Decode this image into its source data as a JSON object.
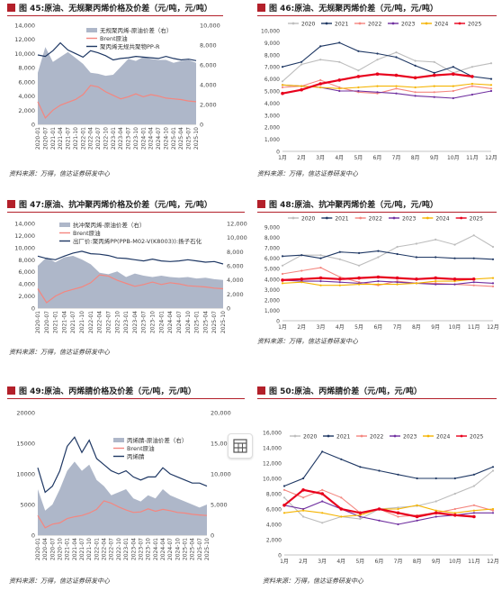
{
  "figures": [
    {
      "label": "图 45:",
      "title": "原油、无规聚丙烯价格及价差（元/吨，元/吨）",
      "source": "资料来源：万得，信达证券研发中心"
    },
    {
      "label": "图 46:",
      "title": "原油、无规聚丙烯价差（元/吨，元/吨）",
      "source": "资料来源：万得，信达证券研发中心"
    },
    {
      "label": "图 47:",
      "title": "原油、抗冲聚丙烯价格及价差（元/吨，元/吨）",
      "source": "资料来源：万得，信达证券研发中心"
    },
    {
      "label": "图 48:",
      "title": "原油、抗冲聚丙烯价差（元/吨，元/吨）",
      "source": "资料来源：万得，信达证券研发中心"
    },
    {
      "label": "图 49:",
      "title": "原油、丙烯腈价格及价差（元/吨，元/吨）",
      "source": "资料来源：万得，信达证券研发中心"
    },
    {
      "label": "图 50:",
      "title": "原油、丙烯腈价差（元/吨，元/吨）",
      "source": "资料来源：万得，信达证券研发中心"
    }
  ],
  "colors": {
    "accent": "#b3202a",
    "spread_area": "#aeb7c9",
    "brent": "#f4867f",
    "product": "#1f3864"
  },
  "chart_data": [
    {
      "type": "area",
      "xlabels": [
        "2020-01",
        "2020-07",
        "2021-01",
        "2021-04",
        "2021-07",
        "2021-10",
        "2022-01",
        "2022-04",
        "2022-07",
        "2022-10",
        "2023-01",
        "2023-04",
        "2023-07",
        "2023-10",
        "2024-01",
        "2024-04",
        "2024-07",
        "2024-10",
        "2025-01",
        "2025-04",
        "2025-07",
        "2025-10"
      ],
      "yticks_left": [
        "0",
        "2,000",
        "4,000",
        "6,000",
        "8,000",
        "10,000",
        "12,000",
        "14,000"
      ],
      "yticks_right": [
        "0",
        "2,000",
        "4,000",
        "6,000",
        "8,000",
        "10,000"
      ],
      "ylim_left": [
        0,
        14000
      ],
      "ylim_right": [
        0,
        10000
      ],
      "series": [
        {
          "name": "无规聚丙烯-原油价差（右）",
          "axis": "right",
          "kind": "area",
          "values": [
            5200,
            7800,
            6300,
            6800,
            7300,
            6700,
            6100,
            5200,
            5100,
            4900,
            5000,
            5800,
            6600,
            6400,
            6800,
            6600,
            6500,
            6500,
            6200,
            6400,
            6500,
            6200
          ]
        },
        {
          "name": "Brent原油",
          "axis": "left",
          "kind": "line",
          "values": [
            3200,
            900,
            2000,
            2700,
            3100,
            3500,
            4200,
            5500,
            5300,
            4600,
            4100,
            3600,
            3900,
            4300,
            3900,
            4200,
            4000,
            3700,
            3600,
            3500,
            3300,
            3200
          ]
        },
        {
          "name": "聚丙烯无规共聚物PP-R",
          "axis": "left",
          "kind": "line",
          "values": [
            9800,
            9600,
            10400,
            11500,
            10500,
            10000,
            9500,
            10400,
            10100,
            9700,
            9100,
            9300,
            9400,
            9600,
            9500,
            9400,
            9300,
            9600,
            9300,
            9100,
            9200,
            9000
          ]
        }
      ]
    },
    {
      "type": "line",
      "categories": [
        "1月",
        "2月",
        "3月",
        "4月",
        "5月",
        "6月",
        "7月",
        "8月",
        "9月",
        "10月",
        "11月",
        "12月"
      ],
      "yticks": [
        "0",
        "1,000",
        "2,000",
        "3,000",
        "4,000",
        "5,000",
        "6,000",
        "7,000",
        "8,000",
        "9,000",
        "10,000"
      ],
      "ylim": [
        0,
        10000
      ],
      "series": [
        {
          "name": "2020",
          "color": "#bdbdbd",
          "values": [
            5800,
            7200,
            7600,
            7400,
            6700,
            7600,
            8200,
            7500,
            7400,
            6500,
            7000,
            7300
          ]
        },
        {
          "name": "2021",
          "color": "#1f3864",
          "values": [
            7000,
            7400,
            8700,
            9000,
            8300,
            8100,
            7800,
            7100,
            6500,
            7000,
            6200,
            6000
          ]
        },
        {
          "name": "2022",
          "color": "#f4867f",
          "values": [
            5300,
            5400,
            5900,
            5300,
            4900,
            4800,
            5200,
            4900,
            4900,
            5000,
            5400,
            5200
          ]
        },
        {
          "name": "2023",
          "color": "#7030a0",
          "values": [
            5500,
            5400,
            5300,
            5000,
            5000,
            4900,
            4800,
            4600,
            4500,
            4400,
            4700,
            5000
          ]
        },
        {
          "name": "2024",
          "color": "#f5b400",
          "values": [
            5500,
            5400,
            5300,
            5200,
            5300,
            5400,
            5400,
            5300,
            5400,
            5400,
            5600,
            5500
          ]
        },
        {
          "name": "2025",
          "color": "#e8001c",
          "values": [
            4800,
            5100,
            5600,
            5900,
            6200,
            6400,
            6300,
            6100,
            6300,
            6400,
            6200,
            null
          ]
        }
      ]
    },
    {
      "type": "area",
      "xlabels": [
        "2020-01",
        "2020-07",
        "2021-01",
        "2021-04",
        "2021-07",
        "2021-10",
        "2022-01",
        "2022-04",
        "2022-07",
        "2022-10",
        "2023-01",
        "2023-04",
        "2023-07",
        "2023-10",
        "2024-01",
        "2024-04",
        "2024-07",
        "2024-10",
        "2025-01",
        "2025-04",
        "2025-07",
        "2025-10"
      ],
      "yticks_left": [
        "0",
        "2,000",
        "4,000",
        "6,000",
        "8,000",
        "10,000",
        "12,000",
        "14,000"
      ],
      "yticks_right": [
        "0",
        "2,000",
        "4,000",
        "6,000",
        "8,000",
        "10,000",
        "12,000"
      ],
      "ylim_left": [
        0,
        14000
      ],
      "ylim_right": [
        0,
        12000
      ],
      "series": [
        {
          "name": "抗冲聚丙烯-原油价差（右）",
          "axis": "right",
          "kind": "area",
          "values": [
            6000,
            7200,
            6500,
            7200,
            7400,
            6900,
            6200,
            5000,
            4800,
            5200,
            4400,
            4900,
            4600,
            4400,
            4600,
            4400,
            4300,
            4400,
            4200,
            4300,
            4100,
            4000
          ]
        },
        {
          "name": "Brent原油",
          "axis": "left",
          "kind": "line",
          "values": [
            3200,
            900,
            2000,
            2700,
            3100,
            3500,
            4200,
            5500,
            5300,
            4600,
            4100,
            3600,
            3900,
            4300,
            3900,
            4200,
            4000,
            3700,
            3600,
            3500,
            3300,
            3200
          ]
        },
        {
          "name": "出厂价:聚丙烯PP(PPB-M02-V(K8003)):扬子石化",
          "axis": "left",
          "kind": "line",
          "values": [
            8600,
            8200,
            8000,
            8600,
            9100,
            9400,
            9000,
            8900,
            8700,
            8300,
            8200,
            8000,
            7800,
            8100,
            7800,
            7700,
            7800,
            8000,
            7800,
            7600,
            7700,
            7300
          ]
        }
      ]
    },
    {
      "type": "line",
      "categories": [
        "1月",
        "2月",
        "3月",
        "4月",
        "5月",
        "6月",
        "7月",
        "8月",
        "9月",
        "10月",
        "11月",
        "12月"
      ],
      "yticks": [
        "0",
        "1,000",
        "2,000",
        "3,000",
        "4,000",
        "5,000",
        "6,000",
        "7,000",
        "8,000",
        "9,000"
      ],
      "ylim": [
        0,
        9000
      ],
      "series": [
        {
          "name": "2020",
          "color": "#bdbdbd",
          "values": [
            5300,
            6300,
            6300,
            5900,
            5300,
            6100,
            7100,
            7400,
            7800,
            7300,
            8200,
            7100
          ]
        },
        {
          "name": "2021",
          "color": "#1f3864",
          "values": [
            6200,
            6300,
            6000,
            6600,
            6500,
            6700,
            6400,
            6100,
            6100,
            6000,
            6000,
            5900
          ]
        },
        {
          "name": "2022",
          "color": "#f4867f",
          "values": [
            4500,
            4800,
            5100,
            4200,
            3700,
            3400,
            3800,
            3600,
            3600,
            3500,
            3400,
            3300
          ]
        },
        {
          "name": "2023",
          "color": "#7030a0",
          "values": [
            3900,
            3800,
            3800,
            3700,
            3600,
            3800,
            3700,
            3600,
            3500,
            3500,
            3700,
            3600
          ]
        },
        {
          "name": "2024",
          "color": "#f5b400",
          "values": [
            3600,
            3700,
            3400,
            3400,
            3500,
            3500,
            3500,
            3600,
            3800,
            3800,
            4000,
            4100
          ]
        },
        {
          "name": "2025",
          "color": "#e8001c",
          "values": [
            3900,
            4000,
            4100,
            4000,
            4100,
            4200,
            4100,
            4000,
            4100,
            4000,
            4000,
            null
          ]
        }
      ]
    },
    {
      "type": "area",
      "xlabels": [
        "2020-01",
        "2020-04",
        "2020-07",
        "2020-10",
        "2021-01",
        "2021-04",
        "2021-07",
        "2021-10",
        "2022-01",
        "2022-04",
        "2022-07",
        "2022-10",
        "2023-01",
        "2023-04",
        "2023-07",
        "2023-10",
        "2024-01",
        "2024-04",
        "2024-07",
        "2024-10",
        "2025-01",
        "2025-04",
        "2025-07",
        "2025-10"
      ],
      "yticks_left": [
        "0",
        "5000",
        "10000",
        "15000",
        "20000"
      ],
      "yticks_right": [
        "0",
        "5,000",
        "10,000",
        "15,000",
        "20,000"
      ],
      "ylim_left": [
        0,
        20000
      ],
      "ylim_right": [
        0,
        20000
      ],
      "series": [
        {
          "name": "丙烯腈-原油价差（右）",
          "axis": "right",
          "kind": "area",
          "values": [
            7500,
            4000,
            5000,
            7500,
            10500,
            12000,
            10500,
            11500,
            9000,
            8000,
            6500,
            7000,
            7500,
            6000,
            5500,
            6500,
            6000,
            7500,
            6500,
            6000,
            5500,
            5000,
            4500,
            5000
          ]
        },
        {
          "name": "Brent原油",
          "axis": "left",
          "kind": "line",
          "values": [
            3200,
            1200,
            1800,
            2000,
            2700,
            3000,
            3200,
            3600,
            4200,
            5600,
            5200,
            4600,
            4100,
            3700,
            3800,
            4300,
            3900,
            4200,
            4000,
            3700,
            3600,
            3400,
            3300,
            3200
          ]
        },
        {
          "name": "丙烯腈",
          "axis": "left",
          "kind": "line",
          "values": [
            11000,
            7000,
            8000,
            10500,
            14500,
            16000,
            13500,
            15500,
            12500,
            11500,
            10500,
            10000,
            10500,
            9500,
            9000,
            9500,
            9500,
            11000,
            10000,
            9500,
            9000,
            8500,
            8500,
            8000
          ]
        }
      ]
    },
    {
      "type": "line",
      "categories": [
        "1月",
        "2月",
        "3月",
        "4月",
        "5月",
        "6月",
        "7月",
        "8月",
        "9月",
        "10月",
        "11月",
        "12月"
      ],
      "yticks": [
        "0",
        "2,000",
        "4,000",
        "6,000",
        "8,000",
        "10,000",
        "12,000",
        "14,000",
        "16,000"
      ],
      "ylim": [
        0,
        16000
      ],
      "series": [
        {
          "name": "2020",
          "color": "#bdbdbd",
          "values": [
            7500,
            5000,
            4200,
            5000,
            4700,
            6000,
            6200,
            6400,
            7000,
            8000,
            9000,
            11000
          ]
        },
        {
          "name": "2021",
          "color": "#1f3864",
          "values": [
            9000,
            10000,
            13500,
            12500,
            11500,
            11000,
            10500,
            10000,
            10000,
            10000,
            10500,
            11500
          ]
        },
        {
          "name": "2022",
          "color": "#f4867f",
          "values": [
            8500,
            7500,
            8500,
            7500,
            5500,
            6000,
            5000,
            5200,
            5500,
            6000,
            6500,
            5800
          ]
        },
        {
          "name": "2023",
          "color": "#7030a0",
          "values": [
            6500,
            6000,
            7000,
            6000,
            5000,
            4500,
            4000,
            4500,
            5000,
            5200,
            5500,
            5500
          ]
        },
        {
          "name": "2024",
          "color": "#f5b400",
          "values": [
            5500,
            5800,
            5500,
            5000,
            5200,
            6000,
            6000,
            6500,
            5800,
            5500,
            5800,
            6000
          ]
        },
        {
          "name": "2025",
          "color": "#e8001c",
          "values": [
            6500,
            8500,
            8000,
            6000,
            5500,
            6000,
            5500,
            5000,
            5500,
            5200,
            5000,
            null
          ]
        }
      ]
    }
  ]
}
